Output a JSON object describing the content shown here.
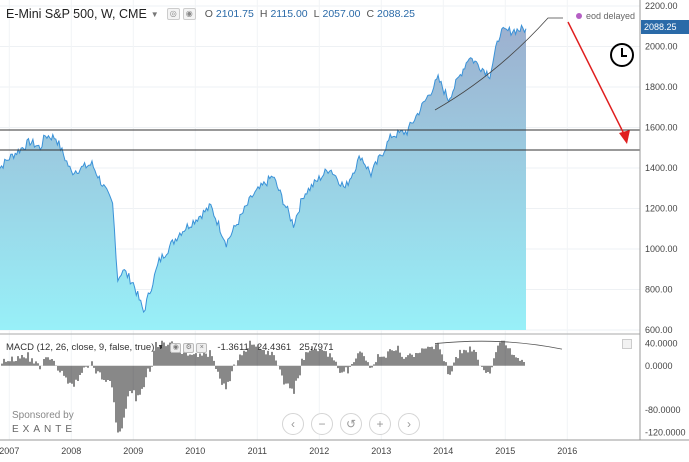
{
  "header": {
    "title": "E-Mini S&P 500, W, CME",
    "ohlc": [
      {
        "label": "O",
        "value": "2101.75"
      },
      {
        "label": "H",
        "value": "2115.00"
      },
      {
        "label": "L",
        "value": "2057.00"
      },
      {
        "label": "C",
        "value": "2088.25"
      }
    ]
  },
  "status": {
    "eod_label": "eod delayed",
    "last_price": "2088.25"
  },
  "price_axis": {
    "ticks": [
      "2200.00",
      "2000.00",
      "1800.00",
      "1600.00",
      "1400.00",
      "1200.00",
      "1000.00",
      "800.00",
      "600.00"
    ]
  },
  "macd": {
    "label": "MACD (12, 26, close, 9, false, true)",
    "values": [
      "-1.3611",
      "24.4361",
      "25.7971"
    ],
    "ticks": [
      "40.0000",
      "0.0000",
      "-80.0000",
      "-120.0000"
    ]
  },
  "time_axis": {
    "ticks": [
      "2007",
      "2008",
      "2009",
      "2010",
      "2011",
      "2012",
      "2013",
      "2014",
      "2015",
      "2016"
    ]
  },
  "sponsor": {
    "label": "Sponsored by",
    "brand": "EXANTE"
  },
  "zoom_controls": [
    "‹",
    "−",
    "↺",
    "+",
    "›"
  ],
  "colors": {
    "line": "#3a92d8",
    "fill_top": "#9db0cf",
    "fill_bottom": "#98f0f8",
    "arrow": "#e02020",
    "price_tag": "#2a6aa8"
  },
  "chart_data": {
    "type": "area",
    "x": [
      "2006-10",
      "2007-01",
      "2007-05",
      "2007-07",
      "2007-08",
      "2007-10",
      "2008-01",
      "2008-05",
      "2008-09",
      "2008-10",
      "2008-11",
      "2009-01",
      "2009-03",
      "2009-06",
      "2009-10",
      "2010-04",
      "2010-07",
      "2010-12",
      "2011-04",
      "2011-08",
      "2011-10",
      "2012-03",
      "2012-06",
      "2012-09",
      "2012-11",
      "2013-03",
      "2013-06",
      "2013-12",
      "2014-02",
      "2014-06",
      "2014-10",
      "2014-12",
      "2015-03",
      "2015-05"
    ],
    "y": [
      1370,
      1450,
      1530,
      1500,
      1560,
      1550,
      1380,
      1420,
      1220,
      850,
      900,
      830,
      690,
      940,
      1080,
      1210,
      1030,
      1260,
      1360,
      1120,
      1270,
      1400,
      1300,
      1460,
      1370,
      1560,
      1580,
      1840,
      1740,
      1950,
      1860,
      2070,
      2080,
      2088
    ],
    "ylim": [
      600,
      2200
    ],
    "horizontal_levels": [
      1580,
      1475
    ],
    "macd_histogram_range": [
      -120,
      45
    ]
  }
}
